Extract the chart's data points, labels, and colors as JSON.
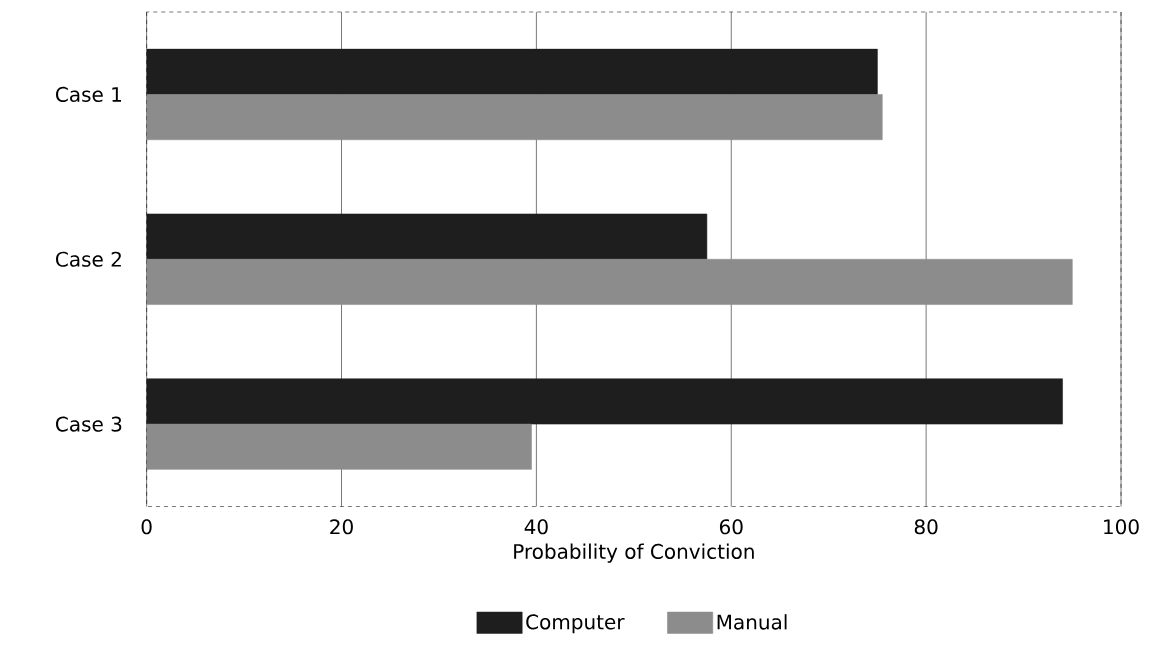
{
  "chart_data": {
    "type": "bar",
    "orientation": "horizontal",
    "xlabel": "Probability of Conviction",
    "categories": [
      "Case 1",
      "Case 2",
      "Case 3"
    ],
    "series": [
      {
        "name": "Computer",
        "color": "#1e1e1e",
        "values": [
          75,
          57.5,
          94
        ]
      },
      {
        "name": "Manual",
        "color": "#8c8c8c",
        "values": [
          75.5,
          95,
          39.5
        ]
      }
    ],
    "xlim": [
      0,
      100
    ],
    "xticks": [
      0,
      20,
      40,
      60,
      80,
      100
    ],
    "grid": "x",
    "legend": "bottom"
  }
}
